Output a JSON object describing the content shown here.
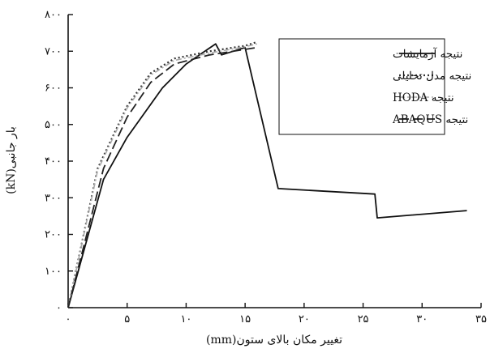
{
  "chart_data": {
    "type": "line",
    "title": "",
    "xlabel": "تغییر مکان بالای ستون(mm)",
    "ylabel": "بار جانبی(kN)",
    "xlim": [
      0,
      35
    ],
    "ylim": [
      0,
      800
    ],
    "x_ticks": [
      0,
      5,
      10,
      15,
      20,
      25,
      30,
      35
    ],
    "x_tick_labels": [
      "۰",
      "۵",
      "۱۰",
      "۱۵",
      "۲۰",
      "۲۵",
      "۳۰",
      "۳۵"
    ],
    "y_ticks": [
      0,
      100,
      200,
      300,
      400,
      500,
      600,
      700,
      800
    ],
    "y_tick_labels": [
      "۰",
      "۱۰۰",
      "۲۰۰",
      "۳۰۰",
      "۴۰۰",
      "۵۰۰",
      "۶۰۰",
      "۷۰۰",
      "۸۰۰"
    ],
    "grid": false,
    "legend_position": "top-right",
    "series": [
      {
        "name": "نتیجه آزمایشات",
        "style": "solid",
        "color": "#111111",
        "points": [
          [
            0,
            0
          ],
          [
            3,
            350
          ],
          [
            5,
            465
          ],
          [
            8,
            600
          ],
          [
            10,
            665
          ],
          [
            12.5,
            720
          ],
          [
            13,
            690
          ],
          [
            15,
            710
          ],
          [
            17.8,
            325
          ],
          [
            26,
            310
          ],
          [
            26.2,
            245
          ],
          [
            33.8,
            265
          ]
        ]
      },
      {
        "name": "نتیجه مدل تحلیلی",
        "style": "dotted",
        "color": "#333333",
        "points": [
          [
            0,
            0
          ],
          [
            2.5,
            380
          ],
          [
            5,
            550
          ],
          [
            7,
            640
          ],
          [
            9,
            680
          ],
          [
            12,
            700
          ],
          [
            15,
            715
          ],
          [
            16,
            725
          ]
        ]
      },
      {
        "name": "نتیجه HODA",
        "style": "dashdot",
        "color": "#aaaaaa",
        "points": [
          [
            0,
            0
          ],
          [
            2.5,
            375
          ],
          [
            5,
            545
          ],
          [
            7,
            635
          ],
          [
            9,
            675
          ],
          [
            12,
            695
          ],
          [
            15,
            712
          ],
          [
            16,
            720
          ]
        ]
      },
      {
        "name": "نتیجه ABAQUS",
        "style": "longdash",
        "color": "#222222",
        "points": [
          [
            0,
            0
          ],
          [
            3,
            380
          ],
          [
            5,
            520
          ],
          [
            7,
            615
          ],
          [
            9,
            665
          ],
          [
            12,
            690
          ],
          [
            15,
            705
          ],
          [
            16,
            710
          ]
        ]
      }
    ]
  }
}
